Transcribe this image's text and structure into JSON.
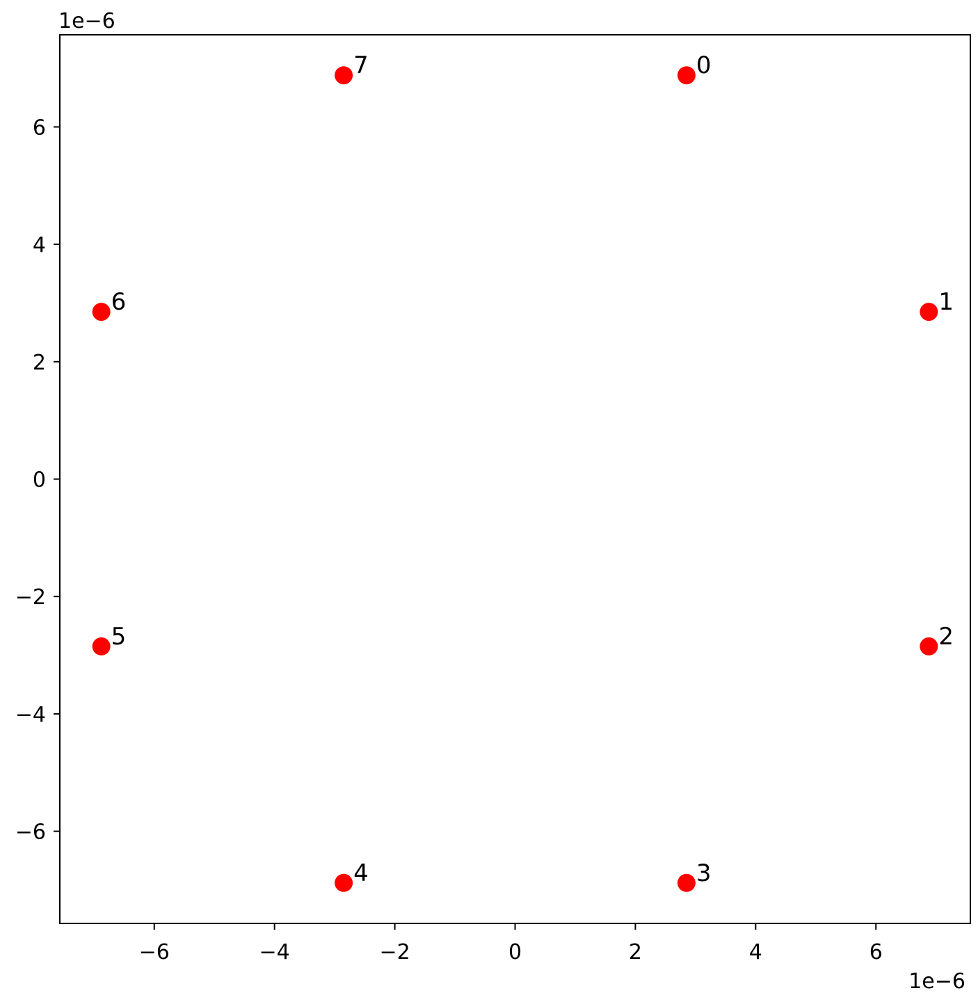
{
  "chart_data": {
    "type": "scatter",
    "points": [
      {
        "label": "0",
        "x": 2.85,
        "y": 6.88
      },
      {
        "label": "1",
        "x": 6.88,
        "y": 2.85
      },
      {
        "label": "2",
        "x": 6.88,
        "y": -2.85
      },
      {
        "label": "3",
        "x": 2.85,
        "y": -6.88
      },
      {
        "label": "4",
        "x": -2.85,
        "y": -6.88
      },
      {
        "label": "5",
        "x": -6.88,
        "y": -2.85
      },
      {
        "label": "6",
        "x": -6.88,
        "y": 2.85
      },
      {
        "label": "7",
        "x": -2.85,
        "y": 6.88
      }
    ],
    "xlim": [
      -7.57,
      7.57
    ],
    "ylim": [
      -7.57,
      7.57
    ],
    "x_ticks": [
      -6,
      -4,
      -2,
      0,
      2,
      4,
      6
    ],
    "y_ticks": [
      -6,
      -4,
      -2,
      0,
      2,
      4,
      6
    ],
    "x_tick_labels": [
      "−6",
      "−4",
      "−2",
      "0",
      "2",
      "4",
      "6"
    ],
    "y_tick_labels": [
      "−6",
      "−4",
      "−2",
      "0",
      "2",
      "4",
      "6"
    ],
    "x_offset_label": "1e−6",
    "y_offset_label": "1e−6",
    "marker_color": "#ff0000",
    "grid": false,
    "title": "",
    "xlabel": "",
    "ylabel": ""
  }
}
